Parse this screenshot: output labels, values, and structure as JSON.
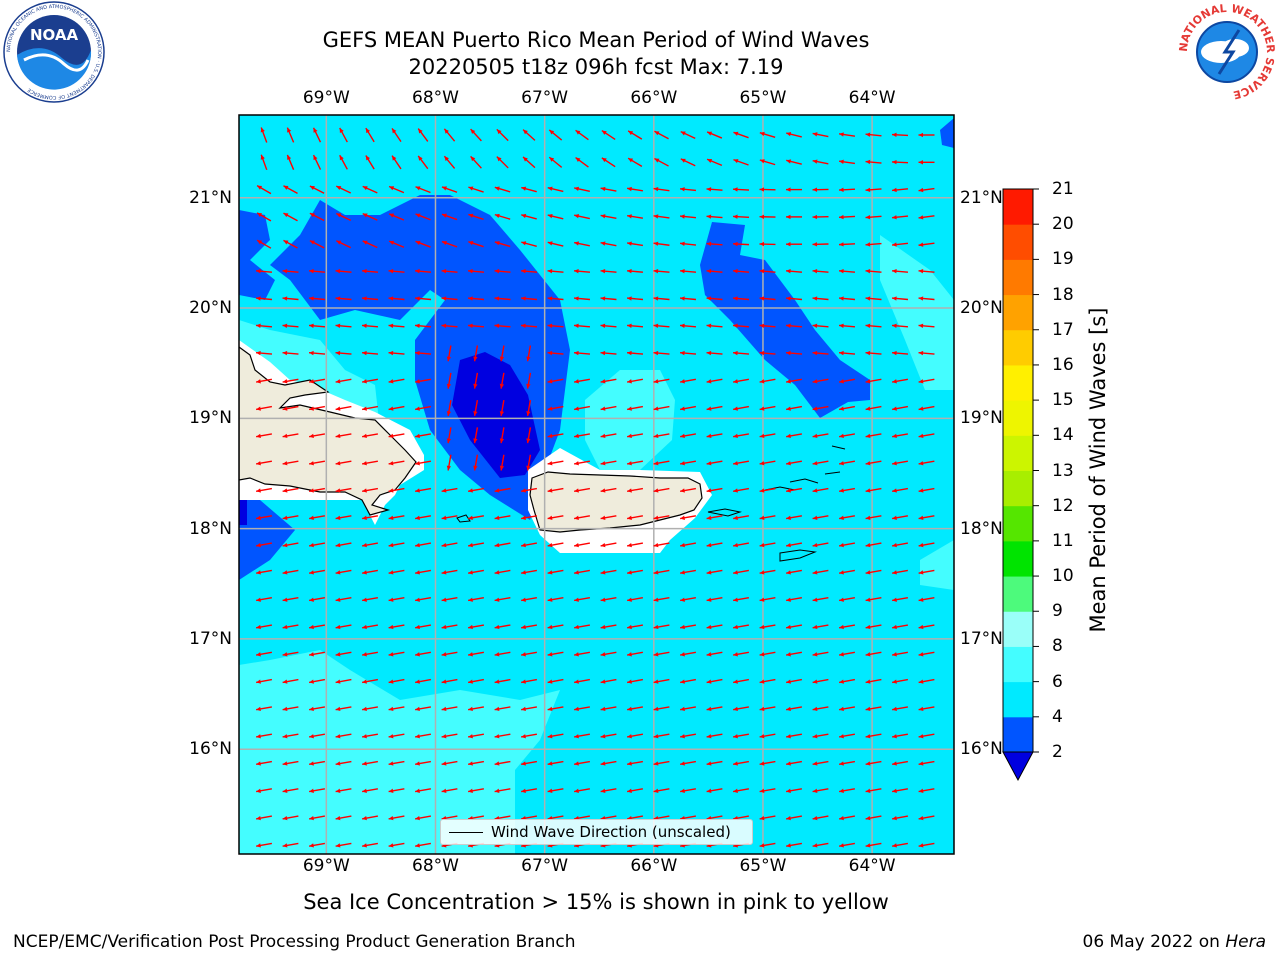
{
  "title": {
    "line1": "GEFS MEAN Puerto Rico Mean Period of Wind Waves",
    "line2": "20220505 t18z 096h fcst   Max: 7.19"
  },
  "map": {
    "lon_ticks": [
      "69°W",
      "68°W",
      "67°W",
      "66°W",
      "65°W",
      "64°W"
    ],
    "lat_ticks": [
      "21°N",
      "20°N",
      "19°N",
      "18°N",
      "17°N",
      "16°N"
    ],
    "lon_range": [
      -69.8,
      -63.25
    ],
    "lat_range": [
      15.05,
      21.75
    ],
    "grid": true,
    "land_color": "#efecdc",
    "arrow_color": "#ff0000",
    "arrow_direction": "toward the west, slightly south"
  },
  "legend": {
    "entry": "Wind Wave Direction (unscaled)"
  },
  "colorbar": {
    "label": "Mean Period of Wind Waves [s]",
    "ticks": [
      "21",
      "20",
      "19",
      "18",
      "17",
      "16",
      "15",
      "14",
      "13",
      "12",
      "11",
      "10",
      "9",
      "8",
      "6",
      "4",
      "2"
    ],
    "levels": [
      2,
      4,
      6,
      8,
      9,
      10,
      11,
      12,
      13,
      14,
      15,
      16,
      17,
      18,
      19,
      20,
      21
    ],
    "colors": [
      "#0055ff",
      "#00eaff",
      "#44fdff",
      "#9afff9",
      "#4dfa7c",
      "#00e400",
      "#55e600",
      "#a8ee00",
      "#ccf500",
      "#eef500",
      "#fff000",
      "#ffcc00",
      "#ffa200",
      "#ff7a00",
      "#ff4d00",
      "#ff1a00"
    ],
    "under_color": "#0000e0"
  },
  "caption": "Sea Ice Concentration > 15% is shown in pink to yellow",
  "footer": {
    "left": "NCEP/EMC/Verification Post Processing Product Generation Branch",
    "date": "06 May 2022 on",
    "host": "Hera"
  },
  "logos": {
    "noaa_text": "NOAA",
    "noaa_ring_text": "NATIONAL OCEANIC AND ATMOSPHERIC ADMINISTRATION · U.S. DEPARTMENT OF COMMERCE",
    "nws_ring_text": "NATIONAL WEATHER SERVICE"
  }
}
